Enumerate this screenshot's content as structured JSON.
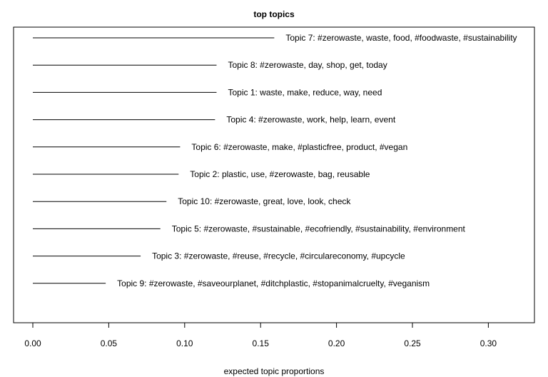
{
  "chart_data": {
    "type": "bar",
    "orientation": "horizontal",
    "title": "top topics",
    "xlabel": "expected topic proportions",
    "ylabel": "",
    "xlim": [
      0,
      0.33
    ],
    "x_ticks": [
      "0.00",
      "0.05",
      "0.10",
      "0.15",
      "0.20",
      "0.25",
      "0.30"
    ],
    "grid": false,
    "categories": [
      "Topic 7: #zerowaste, waste, food, #foodwaste, #sustainability",
      "Topic 8: #zerowaste, day, shop, get, today",
      "Topic 1: waste, make, reduce, way, need",
      "Topic 4: #zerowaste, work, help, learn, event",
      "Topic 6: #zerowaste, make, #plasticfree, product, #vegan",
      "Topic 2: plastic, use, #zerowaste, bag, reusable",
      "Topic 10: #zerowaste, great, love, look, check",
      "Topic 5: #zerowaste, #sustainable, #ecofriendly, #sustainability, #environment",
      "Topic 3: #zerowaste, #reuse, #recycle, #circulareconomy, #upcycle",
      "Topic 9: #zerowaste, #saveourplanet, #ditchplastic, #stopanimalcruelty, #veganism"
    ],
    "values": [
      0.159,
      0.121,
      0.121,
      0.12,
      0.097,
      0.096,
      0.088,
      0.084,
      0.071,
      0.048
    ]
  }
}
